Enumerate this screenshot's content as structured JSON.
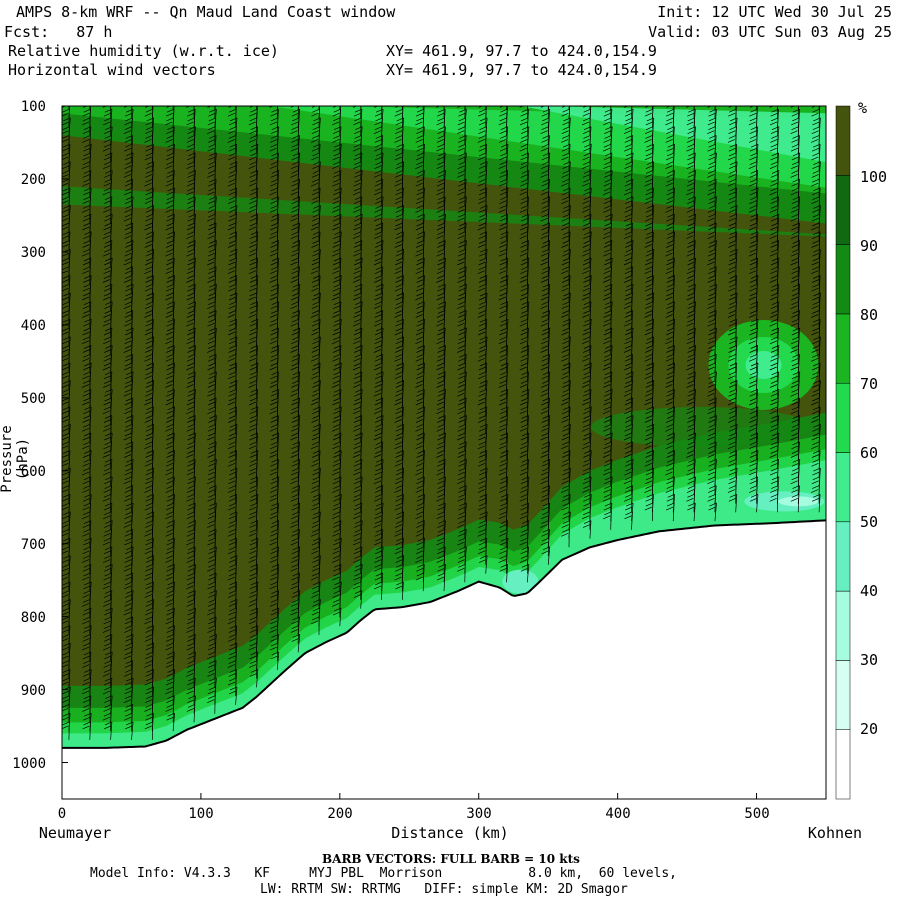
{
  "header": {
    "title": "AMPS 8-km WRF -- Qn Maud Land Coast window",
    "fcst": "Fcst:   87 h",
    "field1": "Relative humidity (w.r.t. ice)",
    "field2": "Horizontal wind vectors",
    "xy1": "XY= 461.9, 97.7 to 424.0,154.9",
    "xy2": "XY= 461.9, 97.7 to 424.0,154.9",
    "init": "Init: 12 UTC Wed 30 Jul 25",
    "valid": "Valid: 03 UTC Sun 03 Aug 25"
  },
  "chart_data": {
    "type": "heatmap",
    "title": "AMPS 8-km WRF -- Qn Maud Land Coast window",
    "ylabel": "Pressure (hPa)",
    "xlabel": "Distance (km)",
    "x_start_label": "Neumayer",
    "x_end_label": "Kohnen",
    "xlim": [
      0,
      550
    ],
    "ylim": [
      1050,
      100
    ],
    "xticks": [
      "0",
      "100",
      "200",
      "300",
      "400",
      "500"
    ],
    "yticks": [
      "100",
      "200",
      "300",
      "400",
      "500",
      "600",
      "700",
      "800",
      "900",
      "1000"
    ],
    "colorbar_unit": "%",
    "colorbar_levels": [
      "20",
      "30",
      "40",
      "50",
      "60",
      "70",
      "80",
      "90",
      "100"
    ],
    "colorbar_colors": [
      "#ffffff",
      "#d6fff4",
      "#a5fcdf",
      "#66f0c2",
      "#41ec8f",
      "#23d94d",
      "#1ab521",
      "#138a14",
      "#116a11",
      "#44540d"
    ],
    "terrain_surface_pressure": [
      [
        0,
        980
      ],
      [
        30,
        980
      ],
      [
        60,
        978
      ],
      [
        75,
        970
      ],
      [
        90,
        955
      ],
      [
        110,
        940
      ],
      [
        130,
        925
      ],
      [
        140,
        910
      ],
      [
        160,
        875
      ],
      [
        175,
        850
      ],
      [
        190,
        835
      ],
      [
        205,
        822
      ],
      [
        215,
        805
      ],
      [
        225,
        790
      ],
      [
        245,
        787
      ],
      [
        265,
        780
      ],
      [
        285,
        765
      ],
      [
        300,
        752
      ],
      [
        315,
        760
      ],
      [
        325,
        772
      ],
      [
        335,
        768
      ],
      [
        345,
        750
      ],
      [
        360,
        722
      ],
      [
        380,
        705
      ],
      [
        400,
        695
      ],
      [
        430,
        683
      ],
      [
        470,
        675
      ],
      [
        510,
        672
      ],
      [
        550,
        668
      ]
    ],
    "rh_description_levels": [
      {
        "region": "most of cross-section",
        "rh": ">100"
      },
      {
        "region": "upper layer 100-250 hPa",
        "rh": "60-90"
      },
      {
        "region": "low-level band above terrain",
        "rh": "60-90"
      },
      {
        "region": "near 460 hPa at 500 km",
        "rh": "60-70"
      },
      {
        "region": "near 640 hPa at 520 km",
        "rh": "40-50"
      }
    ],
    "barb_note": "BARB VECTORS:  FULL BARB = 10 kts"
  },
  "footer": {
    "barb": "BARB VECTORS:  FULL BARB = 10 kts",
    "model1": "Model Info: V4.3.3   KF     MYJ PBL  Morrison           8.0 km,  60 levels,",
    "model2": "LW: RRTM SW: RRTMG   DIFF: simple KM: 2D Smagor"
  }
}
